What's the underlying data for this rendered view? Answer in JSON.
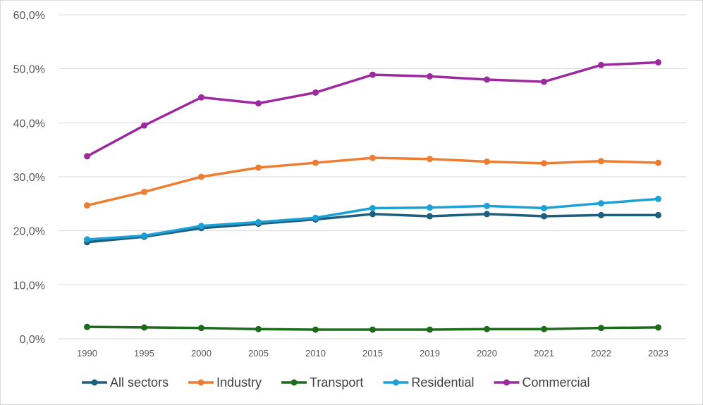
{
  "chart_data": {
    "type": "line",
    "title": "",
    "xlabel": "",
    "ylabel": "",
    "ylim": [
      0,
      60
    ],
    "yticks": [
      "0,0%",
      "10,0%",
      "20,0%",
      "30,0%",
      "40,0%",
      "50,0%",
      "60,0%"
    ],
    "categories": [
      "1990",
      "1995",
      "2000",
      "2005",
      "2010",
      "2015",
      "2019",
      "2020",
      "2021",
      "2022",
      "2023"
    ],
    "grid": true,
    "legend_position": "bottom",
    "series": [
      {
        "name": "All sectors",
        "color": "#1f5f7e",
        "values": [
          17.9,
          18.9,
          20.5,
          21.3,
          22.1,
          23.1,
          22.7,
          23.1,
          22.7,
          22.9,
          22.9
        ]
      },
      {
        "name": "Industry",
        "color": "#ed7d31",
        "values": [
          24.7,
          27.2,
          30.0,
          31.7,
          32.6,
          33.5,
          33.3,
          32.8,
          32.5,
          32.9,
          32.6
        ]
      },
      {
        "name": "Transport",
        "color": "#1e6b1e",
        "values": [
          2.2,
          2.1,
          2.0,
          1.8,
          1.7,
          1.7,
          1.7,
          1.8,
          1.8,
          2.0,
          2.1
        ]
      },
      {
        "name": "Residential",
        "color": "#1ba1d6",
        "values": [
          18.4,
          19.1,
          20.9,
          21.6,
          22.4,
          24.2,
          24.3,
          24.6,
          24.2,
          25.1,
          25.9
        ]
      },
      {
        "name": "Commercial",
        "color": "#9c2a9e",
        "values": [
          33.8,
          39.5,
          44.7,
          43.6,
          45.6,
          48.9,
          48.6,
          48.0,
          47.6,
          50.7,
          51.2
        ]
      }
    ]
  }
}
